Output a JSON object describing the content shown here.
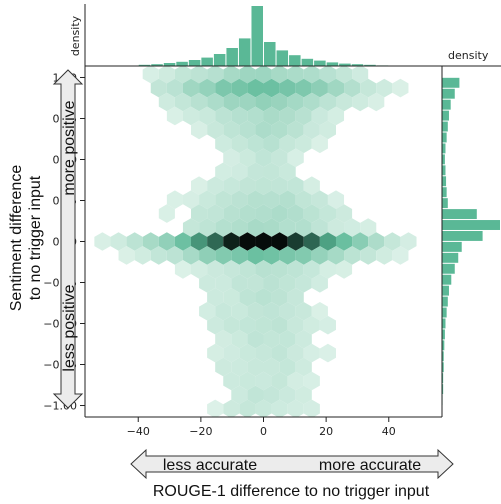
{
  "chart_data": {
    "type": "heatmap",
    "subtype": "hexbin-joint-plot",
    "xlabel": "ROUGE-1 difference to no trigger input",
    "ylabel_line1": "Sentiment difference",
    "ylabel_line2": "to no trigger input",
    "x_arrow": {
      "left": "less accurate",
      "right": "more accurate"
    },
    "y_arrow": {
      "top": "more positive",
      "bottom": "less positive"
    },
    "xlim": [
      -57,
      57
    ],
    "ylim": [
      -1.07,
      1.07
    ],
    "x_ticks": [
      -40,
      -20,
      0,
      20,
      40
    ],
    "x_tick_labels": [
      "−40",
      "−20",
      "0",
      "20",
      "40"
    ],
    "y_ticks": [
      1.0,
      0.75,
      0.5,
      0.25,
      0.0,
      -0.25,
      -0.5,
      -0.75,
      -1.0
    ],
    "y_tick_labels": [
      "1.00",
      "0.75",
      "0.50",
      "0.25",
      "0.00",
      "−0.25",
      "−0.50",
      "−0.75",
      "−1.00"
    ],
    "marginal_x_label": "density",
    "marginal_y_label": "density",
    "color": "#5ab896",
    "hist_x": {
      "edges_start": -40,
      "bin_width": 4,
      "densities": [
        0.02,
        0.03,
        0.05,
        0.07,
        0.1,
        0.14,
        0.2,
        0.3,
        0.46,
        1.0,
        0.4,
        0.26,
        0.18,
        0.12,
        0.09,
        0.06,
        0.04,
        0.03,
        0.02,
        0.01
      ]
    },
    "hist_y": {
      "edges_start": -1.0,
      "bin_width": 0.0667,
      "densities": [
        0.01,
        0.02,
        0.02,
        0.03,
        0.03,
        0.04,
        0.05,
        0.06,
        0.08,
        0.1,
        0.12,
        0.16,
        0.22,
        0.28,
        0.34,
        0.7,
        1.0,
        0.6,
        0.1,
        0.08,
        0.07,
        0.06,
        0.05,
        0.06,
        0.08,
        0.1,
        0.12,
        0.15,
        0.22,
        0.3
      ]
    }
  }
}
